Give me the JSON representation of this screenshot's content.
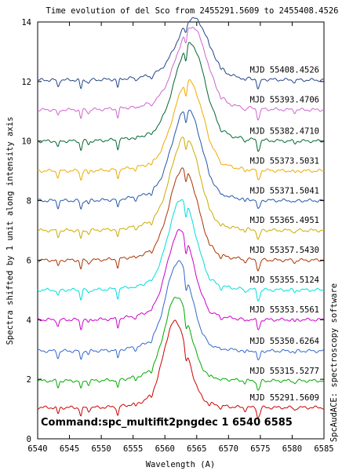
{
  "chart_data": {
    "type": "line",
    "title": "Time evolution of del Sco from 2455291.5609 to 2455408.4526",
    "xlabel": "Wavelength (A)",
    "ylabel": "Spectra shifted by 1 unit along intensity axis",
    "right_label": "SpcAudACE: spectroscopy software",
    "command": "Command:spc_multifit2pngdec 1 6540 6585",
    "xlim": [
      6540,
      6585
    ],
    "ylim": [
      0,
      14
    ],
    "xticks": [
      6540,
      6545,
      6550,
      6555,
      6560,
      6565,
      6570,
      6575,
      6580,
      6585
    ],
    "yticks": [
      0,
      2,
      4,
      6,
      8,
      10,
      12,
      14
    ],
    "grid": false,
    "series": [
      {
        "name": "MJD 55291.5609",
        "color": "#cc0000",
        "offset": 1.05,
        "peak": 2.55,
        "shape": 0
      },
      {
        "name": "MJD 55315.5277",
        "color": "#00aa00",
        "offset": 1.95,
        "peak": 2.45,
        "shape": 1
      },
      {
        "name": "MJD 55350.6264",
        "color": "#3366cc",
        "offset": 2.95,
        "peak": 2.55,
        "shape": 2
      },
      {
        "name": "MJD 55353.5561",
        "color": "#cc00cc",
        "offset": 4.0,
        "peak": 2.5,
        "shape": 3
      },
      {
        "name": "MJD 55355.5124",
        "color": "#00dddd",
        "offset": 5.0,
        "peak": 2.5,
        "shape": 4
      },
      {
        "name": "MJD 55357.5430",
        "color": "#aa3300",
        "offset": 6.0,
        "peak": 2.5,
        "shape": 5
      },
      {
        "name": "MJD 55365.4951",
        "color": "#ccaa00",
        "offset": 7.0,
        "peak": 2.5,
        "shape": 6
      },
      {
        "name": "MJD 55371.5041",
        "color": "#2255aa",
        "offset": 8.0,
        "peak": 2.4,
        "shape": 7
      },
      {
        "name": "MJD 55373.5031",
        "color": "#eeaa00",
        "offset": 9.0,
        "peak": 2.3,
        "shape": 8
      },
      {
        "name": "MJD 55382.4710",
        "color": "#006633",
        "offset": 10.0,
        "peak": 2.45,
        "shape": 9
      },
      {
        "name": "MJD 55393.4706",
        "color": "#cc66cc",
        "offset": 11.05,
        "peak": 2.05,
        "shape": 10
      },
      {
        "name": "MJD 55408.4526",
        "color": "#224488",
        "offset": 12.05,
        "peak": 1.5,
        "shape": 11
      }
    ]
  }
}
